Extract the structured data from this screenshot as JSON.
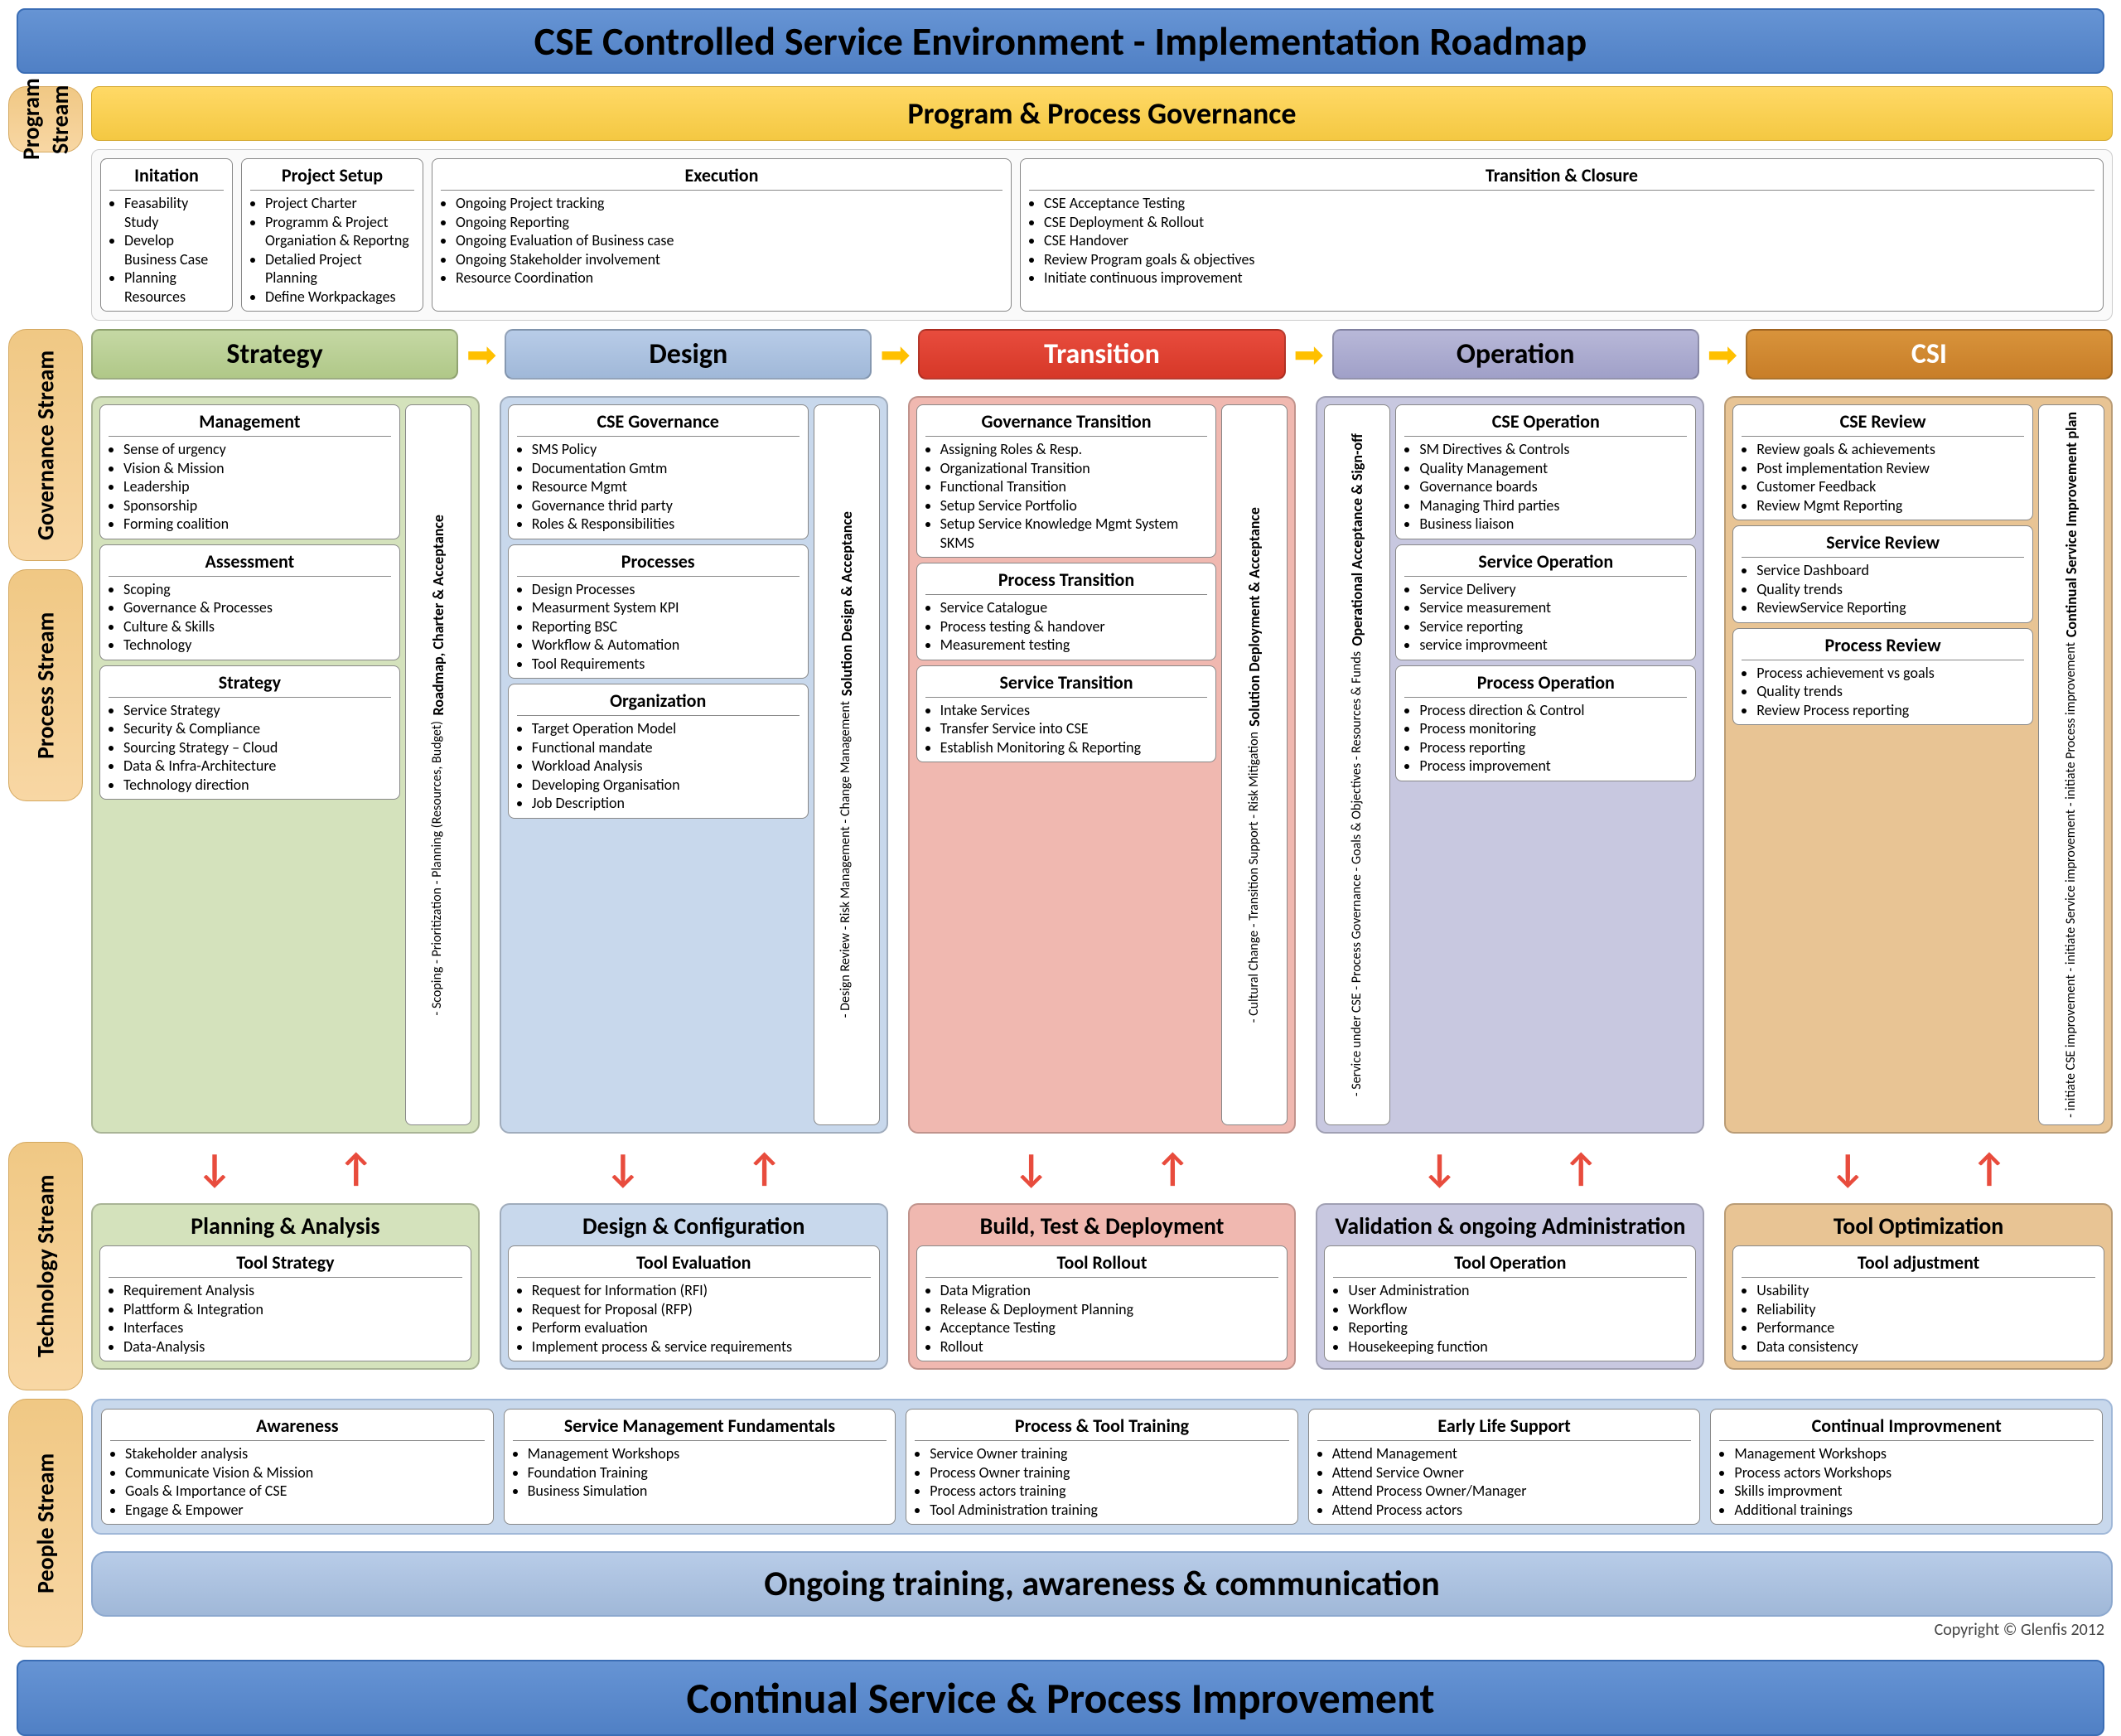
{
  "title": "CSE Controlled Service Environment   -   Implementation Roadmap",
  "footer": "Continual Service & Process Improvement",
  "copyright": "Copyright © Glenfis 2012",
  "streams": {
    "program": "Program Stream",
    "governance": "Governance Stream",
    "process": "Process Stream",
    "technology": "Technology Stream",
    "people": "People Stream"
  },
  "govBanner": "Program & Process Governance",
  "program": {
    "initiation": {
      "title": "Initation",
      "items": [
        "Feasability Study",
        "Develop Business Case",
        "Planning Resources"
      ]
    },
    "setup": {
      "title": "Project Setup",
      "items": [
        "Project Charter",
        "Programm & Project Organiation & Reportng",
        "Detalied Project Planning",
        "Define Workpackages"
      ]
    },
    "execution": {
      "title": "Execution",
      "items": [
        "Ongoing Project tracking",
        "Ongoing Reporting",
        "Ongoing Evaluation of Business case",
        "Ongoing Stakeholder involvement",
        "Resource Coordination"
      ]
    },
    "closure": {
      "title": "Transition & Closure",
      "items": [
        "CSE Acceptance Testing",
        "CSE Deployment & Rollout",
        "CSE Handover",
        "Review Program goals & objectives",
        "Initiate continuous improvement"
      ]
    }
  },
  "phases": {
    "strategy": "Strategy",
    "design": "Design",
    "transition": "Transition",
    "operation": "Operation",
    "csi": "CSI"
  },
  "gov": {
    "strategy": {
      "boxes": [
        {
          "title": "Management",
          "items": [
            "Sense of urgency",
            "Vision & Mission",
            "Leadership",
            "Sponsorship",
            "Forming coalition"
          ]
        },
        {
          "title": "Assessment",
          "items": [
            "Scoping",
            "Governance & Processes",
            "Culture & Skills",
            "Technology"
          ]
        },
        {
          "title": "Strategy",
          "items": [
            "Service Strategy",
            "Security & Compliance",
            "Sourcing Strategy – Cloud",
            "Data & Infra-Architecture",
            "Technology direction"
          ]
        }
      ],
      "side": {
        "title": "Roadmap, Charter & Acceptance",
        "items": "- Scoping\n- Prioritization\n- Planning (Resources, Budget)"
      }
    },
    "design": {
      "boxes": [
        {
          "title": "CSE Governance",
          "items": [
            "SMS Policy",
            "Documentation Gmtm",
            "Resource Mgmt",
            "Governance thrid party",
            "Roles & Responsibilities"
          ]
        },
        {
          "title": "Processes",
          "items": [
            "Design Processes",
            "Measurment System KPI",
            "Reporting BSC",
            "Workflow & Automation",
            "Tool Requirements"
          ]
        },
        {
          "title": "Organization",
          "items": [
            "Target Operation Model",
            "Functional mandate",
            "Workload Analysis",
            "Developing Organisation",
            "Job Description"
          ]
        }
      ],
      "side": {
        "title": "Solution Design & Acceptance",
        "items": "- Design Review\n- Risk Management\n- Change Management"
      }
    },
    "transition": {
      "boxes": [
        {
          "title": "Governance Transition",
          "items": [
            "Assigning Roles & Resp.",
            "Organizational Transition",
            "Functional Transition",
            "Setup Service Portfolio",
            "Setup Service Knowledge Mgmt System SKMS"
          ]
        },
        {
          "title": "Process Transition",
          "items": [
            "Service Catalogue",
            "Process testing & handover",
            "Measurement testing"
          ]
        },
        {
          "title": "Service Transition",
          "items": [
            "Intake Services",
            "Transfer Service into CSE",
            "Establish Monitoring & Reporting"
          ]
        }
      ],
      "side": {
        "title": "Solution Deployment & Acceptance",
        "items": "- Cultural Change\n- Transition Support\n- Risk Mitigation"
      }
    },
    "operation": {
      "boxes": [
        {
          "title": "CSE Operation",
          "items": [
            "SM Directives & Controls",
            "Quality Management",
            "Governance boards",
            "Managing Third parties",
            "Business liaison"
          ]
        },
        {
          "title": "Service Operation",
          "items": [
            "Service Delivery",
            "Service measurement",
            "Service reporting",
            "service improvmeent"
          ]
        },
        {
          "title": "Process Operation",
          "items": [
            "Process direction & Control",
            "Process monitoring",
            "Process reporting",
            "Process improvement"
          ]
        }
      ],
      "sideLeft": {
        "title": "Operational Acceptance & Sign-off",
        "items": "- Service under CSE\n- Process Governance\n- Goals & Objectives\n- Resources & Funds"
      }
    },
    "csi": {
      "boxes": [
        {
          "title": "CSE Review",
          "items": [
            "Review goals & achievements",
            "Post implementation Review",
            "Customer Feedback",
            "Review Mgmt Reporting"
          ]
        },
        {
          "title": "Service Review",
          "items": [
            "Service Dashboard",
            "Quality trends",
            "ReviewService Reporting"
          ]
        },
        {
          "title": "Process Review",
          "items": [
            "Process achievement vs goals",
            "Quality trends",
            "Review Process reporting"
          ]
        }
      ],
      "side": {
        "title": "Continual Service Improvement plan",
        "items": "- initiate CSE improvement\n- initiate Service improvement\n- initiate Process improvement"
      }
    }
  },
  "tech": {
    "strategy": {
      "title": "Planning & Analysis",
      "sub": "Tool Strategy",
      "items": [
        "Requirement Analysis",
        "Plattform & Integration",
        "Interfaces",
        "Data-Analysis"
      ]
    },
    "design": {
      "title": "Design & Configuration",
      "sub": "Tool Evaluation",
      "items": [
        "Request for Information (RFI)",
        "Request for Proposal (RFP)",
        "Perform evaluation",
        "Implement process & service requirements"
      ]
    },
    "transition": {
      "title": "Build, Test & Deployment",
      "sub": "Tool Rollout",
      "items": [
        "Data Migration",
        "Release & Deployment Planning",
        "Acceptance Testing",
        "Rollout"
      ]
    },
    "operation": {
      "title": "Validation & ongoing Administration",
      "sub": "Tool Operation",
      "items": [
        "User Administration",
        "Workflow",
        "Reporting",
        "Housekeeping function"
      ]
    },
    "csi": {
      "title": "Tool Optimization",
      "sub": "Tool adjustment",
      "items": [
        "Usability",
        "Reliability",
        "Performance",
        "Data consistency"
      ]
    }
  },
  "people": {
    "awareness": {
      "title": "Awareness",
      "items": [
        "Stakeholder analysis",
        "Communicate Vision & Mission",
        "Goals & Importance of CSE",
        "Engage & Empower"
      ]
    },
    "smf": {
      "title": "Service Management Fundamentals",
      "items": [
        "Management Workshops",
        "Foundation Training",
        "Business Simulation"
      ]
    },
    "training": {
      "title": "Process & Tool Training",
      "items": [
        "Service Owner training",
        "Process Owner training",
        "Process actors training",
        "Tool Administration training"
      ]
    },
    "els": {
      "title": "Early Life Support",
      "items": [
        "Attend Management",
        "Attend Service Owner",
        "Attend Process Owner/Manager",
        "Attend Process actors"
      ]
    },
    "ci": {
      "title": "Continual Improvmenent",
      "items": [
        "Management Workshops",
        "Process actors Workshops",
        "Skills improvment",
        "Additional trainings"
      ]
    }
  },
  "ongoing": "Ongoing training, awareness & communication",
  "colors": {
    "blue": "#6694d4",
    "yellow": "#ffd966",
    "green": "#c5d8a4",
    "lblue": "#b8cce8",
    "red": "#e84c3d",
    "purple": "#b8b8d8",
    "orange": "#d8933b",
    "peach": "#f8d7a4"
  }
}
